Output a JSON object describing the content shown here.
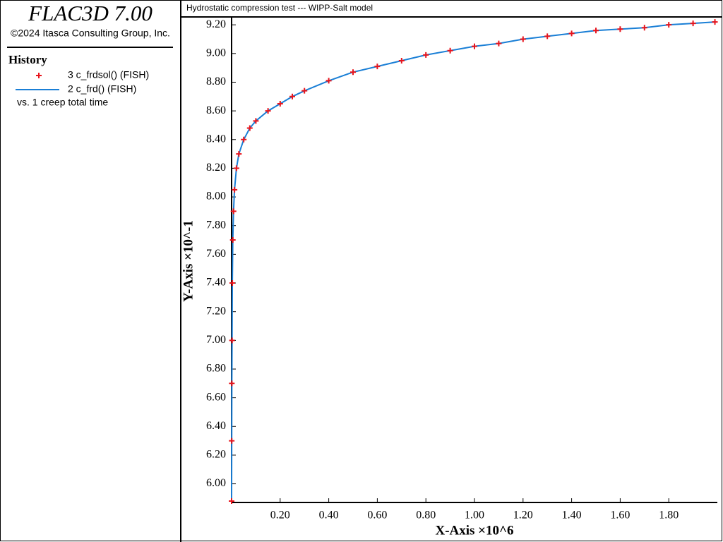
{
  "header": {
    "title": "FLAC3D 7.00",
    "copyright": "©2024 Itasca Consulting Group, Inc."
  },
  "legend_title": "History",
  "legend_footer": "vs. 1 creep total time",
  "chart_data": {
    "type": "line",
    "title": "Hydrostatic compression test --- WIPP-Salt model",
    "x_label": "X-Axis ×10^6",
    "y_label": "Y-Axis ×10^-1",
    "x": [
      0,
      0.0005,
      0.001,
      0.002,
      0.003,
      0.005,
      0.008,
      0.012,
      0.02,
      0.03,
      0.05,
      0.075,
      0.1,
      0.15,
      0.2,
      0.25,
      0.3,
      0.4,
      0.5,
      0.6,
      0.7,
      0.8,
      0.9,
      1.0,
      1.1,
      1.2,
      1.3,
      1.4,
      1.5,
      1.6,
      1.7,
      1.8,
      1.9,
      1.99
    ],
    "series": [
      {
        "name": "3 c_frdsol() (FISH)",
        "type": "scatter",
        "color": "#e8141c",
        "values": [
          5.88,
          6.3,
          6.7,
          7.0,
          7.4,
          7.7,
          7.9,
          8.05,
          8.2,
          8.3,
          8.4,
          8.48,
          8.53,
          8.6,
          8.65,
          8.7,
          8.74,
          8.81,
          8.87,
          8.91,
          8.95,
          8.99,
          9.02,
          9.05,
          9.07,
          9.1,
          9.12,
          9.14,
          9.16,
          9.17,
          9.18,
          9.2,
          9.21,
          9.22
        ]
      },
      {
        "name": "2 c_frd() (FISH)",
        "type": "line",
        "color": "#1a7fd6",
        "values": [
          5.88,
          6.3,
          6.7,
          7.0,
          7.4,
          7.7,
          7.9,
          8.05,
          8.2,
          8.3,
          8.4,
          8.48,
          8.53,
          8.6,
          8.65,
          8.7,
          8.74,
          8.81,
          8.87,
          8.91,
          8.95,
          8.99,
          9.02,
          9.05,
          9.07,
          9.1,
          9.12,
          9.14,
          9.16,
          9.17,
          9.18,
          9.2,
          9.21,
          9.22
        ]
      }
    ],
    "xlim": [
      0,
      2.0
    ],
    "ylim": [
      5.87,
      9.25
    ],
    "xticks": [
      {
        "value": 0.2,
        "label": "0.20"
      },
      {
        "value": 0.4,
        "label": "0.40"
      },
      {
        "value": 0.6,
        "label": "0.60"
      },
      {
        "value": 0.8,
        "label": "0.80"
      },
      {
        "value": 1.0,
        "label": "1.00"
      },
      {
        "value": 1.2,
        "label": "1.20"
      },
      {
        "value": 1.4,
        "label": "1.40"
      },
      {
        "value": 1.6,
        "label": "1.60"
      },
      {
        "value": 1.8,
        "label": "1.80"
      }
    ],
    "yticks": [
      {
        "value": 6.0,
        "label": "6.00"
      },
      {
        "value": 6.2,
        "label": "6.20"
      },
      {
        "value": 6.4,
        "label": "6.40"
      },
      {
        "value": 6.6,
        "label": "6.60"
      },
      {
        "value": 6.8,
        "label": "6.80"
      },
      {
        "value": 7.0,
        "label": "7.00"
      },
      {
        "value": 7.2,
        "label": "7.20"
      },
      {
        "value": 7.4,
        "label": "7.40"
      },
      {
        "value": 7.6,
        "label": "7.60"
      },
      {
        "value": 7.8,
        "label": "7.80"
      },
      {
        "value": 8.0,
        "label": "8.00"
      },
      {
        "value": 8.2,
        "label": "8.20"
      },
      {
        "value": 8.4,
        "label": "8.40"
      },
      {
        "value": 8.6,
        "label": "8.60"
      },
      {
        "value": 8.8,
        "label": "8.80"
      },
      {
        "value": 9.0,
        "label": "9.00"
      },
      {
        "value": 9.2,
        "label": "9.20"
      }
    ],
    "grid": false
  }
}
